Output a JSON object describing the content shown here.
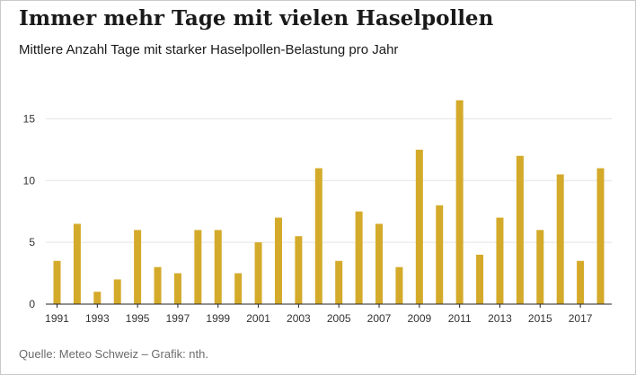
{
  "title": "Immer mehr Tage mit vielen Haselpollen",
  "subtitle": "Mittlere Anzahl Tage mit starker Haselpollen-Belastung pro Jahr",
  "source": "Quelle: Meteo Schweiz – Grafik: nth.",
  "chart_data": {
    "type": "bar",
    "title": "Immer mehr Tage mit vielen Haselpollen",
    "subtitle": "Mittlere Anzahl Tage mit starker Haselpollen-Belastung pro Jahr",
    "xlabel": "",
    "ylabel": "",
    "categories": [
      "1991",
      "1992",
      "1993",
      "1994",
      "1995",
      "1996",
      "1997",
      "1998",
      "1999",
      "2000",
      "2001",
      "2002",
      "2003",
      "2004",
      "2005",
      "2006",
      "2007",
      "2008",
      "2009",
      "2010",
      "2011",
      "2012",
      "2013",
      "2014",
      "2015",
      "2016",
      "2017",
      "2018"
    ],
    "x_tick_labels": [
      "1991",
      "1993",
      "1995",
      "1997",
      "1999",
      "2001",
      "2003",
      "2005",
      "2007",
      "2009",
      "2011",
      "2013",
      "2015",
      "2017"
    ],
    "values": [
      3.5,
      6.5,
      1,
      2,
      6,
      3,
      2.5,
      6,
      6,
      2.5,
      5,
      7,
      5.5,
      11,
      3.5,
      7.5,
      6.5,
      3,
      12.5,
      8,
      16.5,
      4,
      7,
      12,
      6,
      10.5,
      3.5,
      11
    ],
    "y_ticks": [
      0,
      5,
      10,
      15
    ],
    "ylim": [
      0,
      17.5
    ],
    "grid": true,
    "bar_color": "#d4aa2a",
    "grid_color": "#e3e3e3"
  }
}
